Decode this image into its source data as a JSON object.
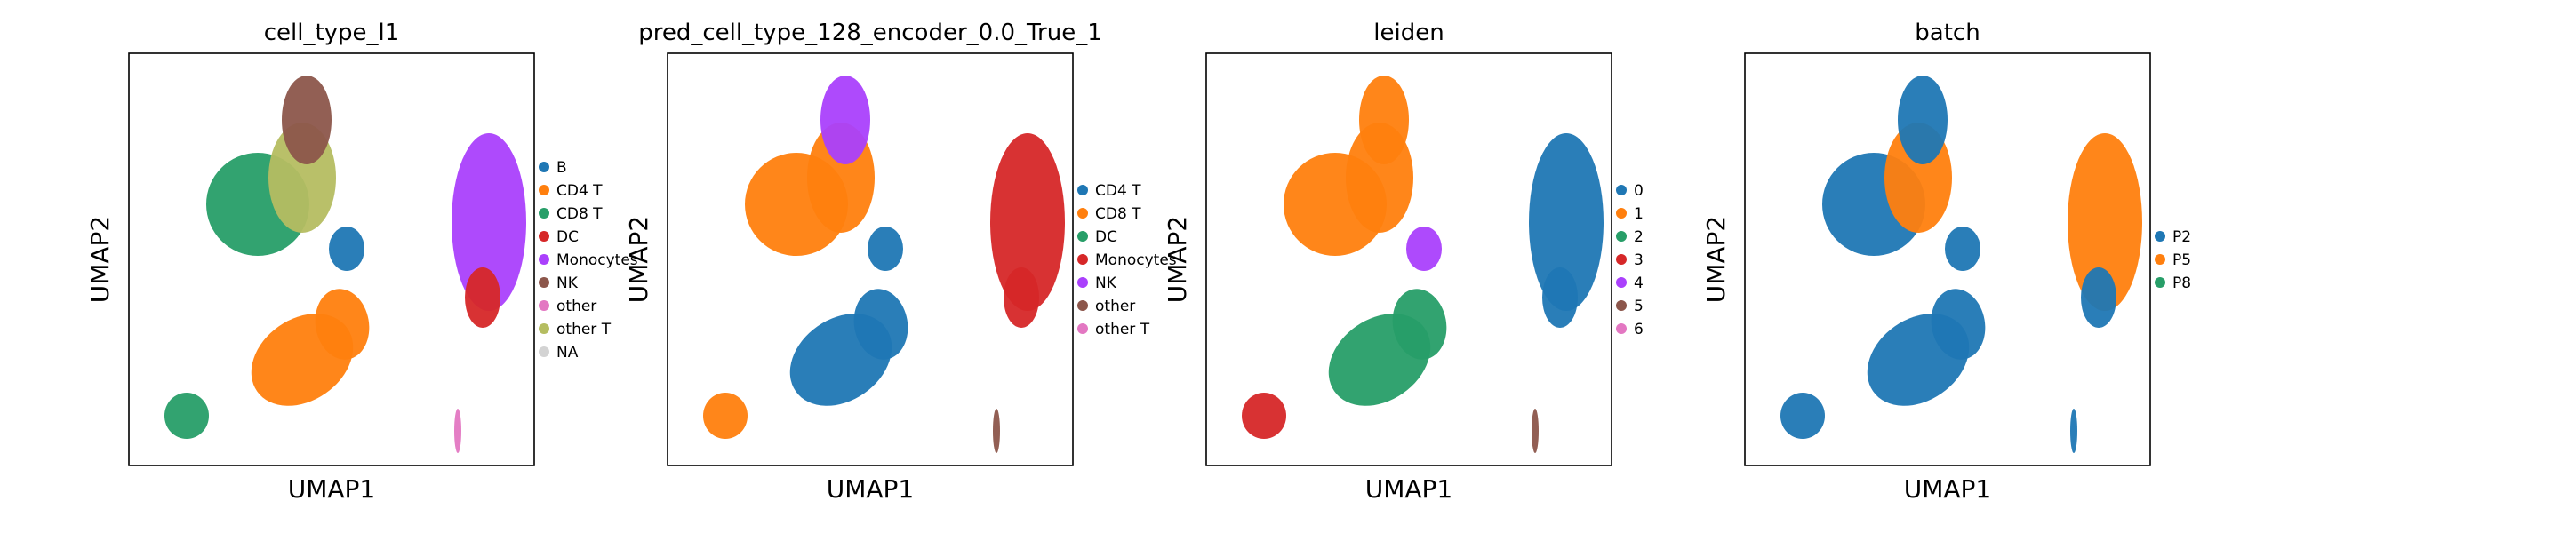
{
  "palette": {
    "c0": "#1f77b4",
    "c1": "#ff7f0e",
    "c2": "#279e68",
    "c3": "#d62728",
    "c4": "#aa40fc",
    "c5": "#8c564b",
    "c6": "#e377c2",
    "c7": "#b5bd61",
    "na": "#d3d3d3"
  },
  "chart_data": [
    {
      "type": "scatter",
      "title": "cell_type_l1",
      "xlabel": "UMAP1",
      "ylabel": "UMAP2",
      "legend": "right",
      "legend_entries": [
        {
          "label": "B",
          "color": "#1f77b4"
        },
        {
          "label": "CD4 T",
          "color": "#ff7f0e"
        },
        {
          "label": "CD8 T",
          "color": "#279e68"
        },
        {
          "label": "DC",
          "color": "#d62728"
        },
        {
          "label": "Monocytes",
          "color": "#aa40fc"
        },
        {
          "label": "NK",
          "color": "#8c564b"
        },
        {
          "label": "other",
          "color": "#e377c2"
        },
        {
          "label": "other T",
          "color": "#b5bd61"
        },
        {
          "label": "NA",
          "color": "#d3d3d3"
        }
      ]
    },
    {
      "type": "scatter",
      "title": "pred_cell_type_128_encoder_0.0_True_1",
      "xlabel": "UMAP1",
      "ylabel": "UMAP2",
      "legend": "right",
      "legend_entries": [
        {
          "label": "CD4 T",
          "color": "#1f77b4"
        },
        {
          "label": "CD8 T",
          "color": "#ff7f0e"
        },
        {
          "label": "DC",
          "color": "#279e68"
        },
        {
          "label": "Monocytes",
          "color": "#d62728"
        },
        {
          "label": "NK",
          "color": "#aa40fc"
        },
        {
          "label": "other",
          "color": "#8c564b"
        },
        {
          "label": "other T",
          "color": "#e377c2"
        }
      ]
    },
    {
      "type": "scatter",
      "title": "leiden",
      "xlabel": "UMAP1",
      "ylabel": "UMAP2",
      "legend": "right",
      "legend_entries": [
        {
          "label": "0",
          "color": "#1f77b4"
        },
        {
          "label": "1",
          "color": "#ff7f0e"
        },
        {
          "label": "2",
          "color": "#279e68"
        },
        {
          "label": "3",
          "color": "#d62728"
        },
        {
          "label": "4",
          "color": "#aa40fc"
        },
        {
          "label": "5",
          "color": "#8c564b"
        },
        {
          "label": "6",
          "color": "#e377c2"
        }
      ]
    },
    {
      "type": "scatter",
      "title": "batch",
      "xlabel": "UMAP1",
      "ylabel": "UMAP2",
      "legend": "right",
      "legend_entries": [
        {
          "label": "P2",
          "color": "#1f77b4"
        },
        {
          "label": "P5",
          "color": "#ff7f0e"
        },
        {
          "label": "P8",
          "color": "#279e68"
        }
      ]
    }
  ]
}
